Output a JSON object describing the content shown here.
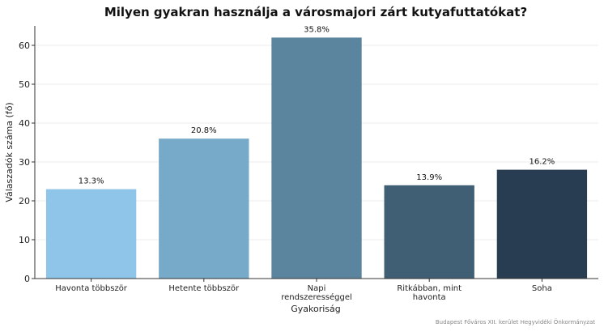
{
  "chart_data": {
    "type": "bar",
    "title": "Milyen gyakran használja a városmajori zárt kutyafuttatókat?",
    "xlabel": "Gyakoriság",
    "ylabel": "Válaszadók száma (fő)",
    "categories": [
      [
        "Havonta többször"
      ],
      [
        "Hetente többször"
      ],
      [
        "Napi",
        "rendszerességgel"
      ],
      [
        "Ritkábban, mint",
        "havonta"
      ],
      [
        "Soha"
      ]
    ],
    "values": [
      23,
      36,
      62,
      24,
      28
    ],
    "data_labels": [
      "13.3%",
      "20.8%",
      "35.8%",
      "13.9%",
      "16.2%"
    ],
    "colors": [
      "#90c5ea",
      "#77a9c9",
      "#5b849e",
      "#405f75",
      "#293d52"
    ],
    "ylim": [
      0,
      65
    ],
    "yticks": [
      0,
      10,
      20,
      30,
      40,
      50,
      60
    ],
    "grid": true,
    "legend": "none"
  },
  "source": "Budapest Főváros XII. kerület Hegyvidéki Önkormányzat"
}
